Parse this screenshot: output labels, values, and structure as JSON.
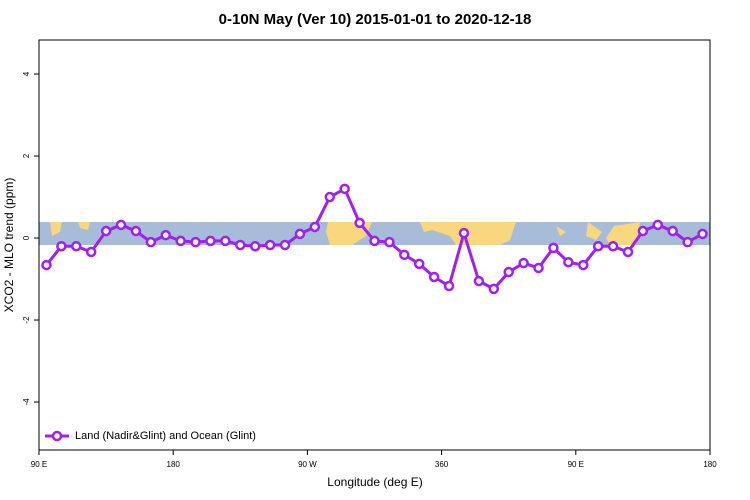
{
  "chart_data": {
    "type": "line",
    "title": "0-10N May (Ver 10)   2015-01-01 to 2020-12-18",
    "x_label": "Longitude (deg E)",
    "y_label": "XCO2 - MLO trend (ppm)",
    "x": [
      95,
      105,
      115,
      125,
      135,
      145,
      155,
      165,
      175,
      185,
      195,
      205,
      215,
      225,
      235,
      245,
      255,
      265,
      275,
      285,
      295,
      305,
      315,
      325,
      335,
      345,
      355,
      365,
      375,
      385,
      395,
      405,
      415,
      425,
      435,
      445,
      455,
      465,
      475,
      485,
      495,
      505,
      515,
      525,
      535
    ],
    "series": [
      {
        "name": "Land (Nadir&Glint) and Ocean (Glint)",
        "color": "#a020f0",
        "values": [
          -0.66,
          -0.2,
          -0.2,
          -0.34,
          0.17,
          0.32,
          0.17,
          -0.1,
          0.07,
          -0.07,
          -0.1,
          -0.07,
          -0.07,
          -0.17,
          -0.2,
          -0.17,
          -0.17,
          0.1,
          0.27,
          1.0,
          1.2,
          0.37,
          -0.07,
          -0.1,
          -0.41,
          -0.63,
          -0.95,
          -1.17,
          0.12,
          -1.05,
          -1.24,
          -0.83,
          -0.61,
          -0.73,
          -0.24,
          -0.59,
          -0.66,
          -0.2,
          -0.2,
          -0.34,
          0.17,
          0.32,
          0.17,
          -0.1,
          0.1
        ]
      }
    ],
    "xlim": [
      90,
      540
    ],
    "xticks": [
      {
        "value": 90,
        "label": "90 E"
      },
      {
        "value": 180,
        "label": "180"
      },
      {
        "value": 270,
        "label": "90 W"
      },
      360,
      {
        "value": 450,
        "label": "90 E"
      },
      {
        "value": 540,
        "label": "180"
      }
    ],
    "ylim": [
      -5.17,
      4.83
    ],
    "yticks": [
      -4,
      -2,
      0,
      2,
      4
    ],
    "legend": "bottom left"
  }
}
